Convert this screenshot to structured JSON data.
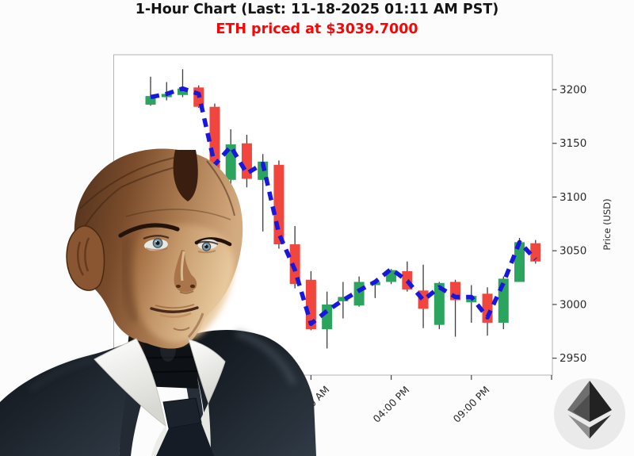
{
  "header": {
    "title": "1-Hour Chart (Last: 11-18-2025 01:11 AM PST)",
    "title_color": "#141414",
    "subtitle": "ETH priced at $3039.7000",
    "subtitle_color": "#f90505"
  },
  "chart_data": {
    "type": "candlestick",
    "title": "1-Hour Chart (Last: 11-18-2025 01:11 AM PST)",
    "subtitle": "ETH priced at $3039.7000",
    "ylabel": "Price (USD)",
    "xlabel": "",
    "grid": true,
    "legend": false,
    "ylim": [
      2935,
      3233
    ],
    "y_ticks": [
      2950,
      3000,
      3050,
      3100,
      3150,
      3200
    ],
    "x_tick_labels": [
      {
        "candle_index": 10,
        "label": "11:00 AM"
      },
      {
        "candle_index": 15,
        "label": "04:00 PM"
      },
      {
        "candle_index": 20,
        "label": "09:00 PM"
      }
    ],
    "x_gridline_candle_indices": [
      0,
      5,
      10,
      15,
      20,
      25
    ],
    "candles_ohlc": [
      [
        3186,
        3212,
        3185,
        3194
      ],
      [
        3193,
        3207,
        3190,
        3196
      ],
      [
        3195,
        3219,
        3193,
        3201
      ],
      [
        3202,
        3204,
        3183,
        3184
      ],
      [
        3184,
        3187,
        3110,
        3114
      ],
      [
        3116,
        3163,
        3108,
        3149
      ],
      [
        3150,
        3158,
        3109,
        3117
      ],
      [
        3116,
        3140,
        3068,
        3133
      ],
      [
        3130,
        3134,
        3052,
        3056
      ],
      [
        3056,
        3073,
        3015,
        3019
      ],
      [
        3023,
        3031,
        2976,
        2977
      ],
      [
        2977,
        3012,
        2959,
        3000
      ],
      [
        3003,
        3021,
        2987,
        3007
      ],
      [
        2999,
        3026,
        2998,
        3021
      ],
      [
        3018,
        3023,
        3006,
        3021
      ],
      [
        3021,
        3033,
        3019,
        3032
      ],
      [
        3031,
        3040,
        3012,
        3014
      ],
      [
        3013,
        3037,
        2978,
        2996
      ],
      [
        2981,
        3021,
        2977,
        3020
      ],
      [
        3021,
        3023,
        2970,
        3004
      ],
      [
        3002,
        3018,
        2983,
        3008
      ],
      [
        3010,
        3016,
        2971,
        2983
      ],
      [
        2983,
        3026,
        2977,
        3024
      ],
      [
        3021,
        3062,
        3021,
        3058
      ],
      [
        3057,
        3060,
        3038,
        3040
      ]
    ],
    "ma_dashed_line": [
      3193,
      3196,
      3201,
      3196,
      3130,
      3147,
      3122,
      3131,
      3066,
      3032,
      2982,
      2994,
      3004,
      3013,
      3021,
      3033,
      3022,
      3004,
      3016,
      3007,
      3007,
      2988,
      3020,
      3058,
      3042
    ],
    "colors": {
      "up": "#2ba55e",
      "down": "#f1463e",
      "wick": "#3d3d3d",
      "ma_line": "#1717dd",
      "grid": "#cccccc",
      "axis_border": "#b3b3b3",
      "tick_label": "#2b2b2b"
    }
  },
  "overlay_graphics": {
    "robot_figure": "android-robot-in-suit",
    "eth_badge": "ethereum-diamond-icon"
  }
}
